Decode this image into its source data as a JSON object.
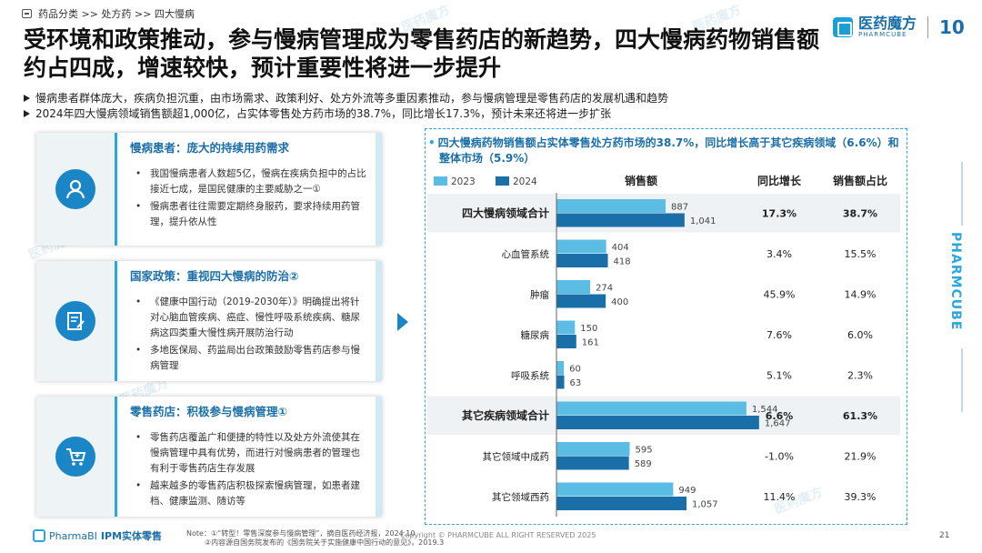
{
  "breadcrumb": {
    "text": "药品分类 >> 处方药 >> 四大慢病"
  },
  "logo": {
    "cn": "医药魔方",
    "en": "PHARMCUBE",
    "badge": "10"
  },
  "title": "受环境和政策推动，参与慢病管理成为零售药店的新趋势，四大慢病药物销售额约占四成，增速较快，预计重要性将进一步提升",
  "bullets": [
    "慢病患者群体庞大，疾病负担沉重，由市场需求、政策利好、处方外流等多重因素推动，参与慢病管理是零售药店的发展机遇和趋势",
    "2024年四大慢病领域销售额超1,000亿，占实体零售处方药市场的38.7%，同比增长17.3%，预计未来还将进一步扩张"
  ],
  "cards": [
    {
      "title": "慢病患者：庞大的持续用药需求",
      "icon": "patient-icon",
      "items": [
        "我国慢病患者人数超5亿，慢病在疾病负担中的占比接近七成，是国民健康的主要威胁之一①",
        "慢病患者往往需要定期终身服药，要求持续用药管理，提升依从性"
      ]
    },
    {
      "title": "国家政策：重视四大慢病的防治②",
      "icon": "policy-document-icon",
      "items": [
        "《健康中国行动（2019-2030年）》明确提出将针对心脑血管疾病、癌症、慢性呼吸系统疾病、糖尿病这四类重大慢性病开展防治行动",
        "多地医保局、药监局出台政策鼓励零售药店参与慢病管理"
      ]
    },
    {
      "title": "零售药店：积极参与慢病管理①",
      "icon": "pharmacy-cart-icon",
      "items": [
        "零售药店覆盖广和便捷的特性以及处方外流使其在慢病管理中具有优势，而进行对慢病患者的管理也有利于零售药店生存发展",
        "越来越多的零售药店积极探索慢病管理，如患者建档、健康监测、随访等"
      ]
    }
  ],
  "chart_title": "四大慢病药物销售额占实体零售处方药市场的38.7%，同比增长高于其它疾病领域（6.6%）和整体市场（5.9%）",
  "chart_data": {
    "type": "bar",
    "orientation": "horizontal",
    "categories": [
      "四大慢病领域合计",
      "心血管系统",
      "肿瘤",
      "糖尿病",
      "呼吸系统",
      "其它疾病领域合计",
      "其它领域中成药",
      "其它领域西药"
    ],
    "highlight_rows": [
      "四大慢病领域合计",
      "其它疾病领域合计"
    ],
    "series": [
      {
        "name": "2023",
        "color": "#5bbde3",
        "values": [
          887,
          404,
          274,
          150,
          60,
          1544,
          595,
          949
        ],
        "labels": [
          "887",
          "404",
          "274",
          "150",
          "60",
          "1,544",
          "595",
          "949"
        ]
      },
      {
        "name": "2024",
        "color": "#1b6fa8",
        "values": [
          1041,
          418,
          400,
          161,
          63,
          1647,
          589,
          1057
        ],
        "labels": [
          "1,041",
          "418",
          "400",
          "161",
          "63",
          "1,647",
          "589",
          "1,057"
        ]
      }
    ],
    "col_headers": {
      "sales": "销售额",
      "growth": "同比增长",
      "share": "销售额占比"
    },
    "growth": [
      "17.3%",
      "3.4%",
      "45.9%",
      "7.6%",
      "5.1%",
      "6.6%",
      "-1.0%",
      "11.4%"
    ],
    "share": [
      "38.7%",
      "15.5%",
      "14.9%",
      "6.0%",
      "2.3%",
      "61.3%",
      "21.9%",
      "39.3%"
    ],
    "xlim": [
      0,
      1700
    ]
  },
  "side_brand": "PHARMCUBE",
  "footer": {
    "brand": "PharmaBI",
    "brand_suffix": "IPM实体零售",
    "note_line1": "Note：①“转型！零售深度参与慢病管理”，摘自医药经济报，2024.10",
    "note_line2": "②内容源自国务院发布的《国务院关于实施健康中国行动的意见》，2019.3",
    "copyright": "Copyright © PHARMCUBE ALL RIGHT RESERVED 2025",
    "page": "21"
  },
  "watermark": "医药魔方",
  "colors": {
    "accent": "#1b6fa8",
    "light": "#2aa7dd"
  }
}
